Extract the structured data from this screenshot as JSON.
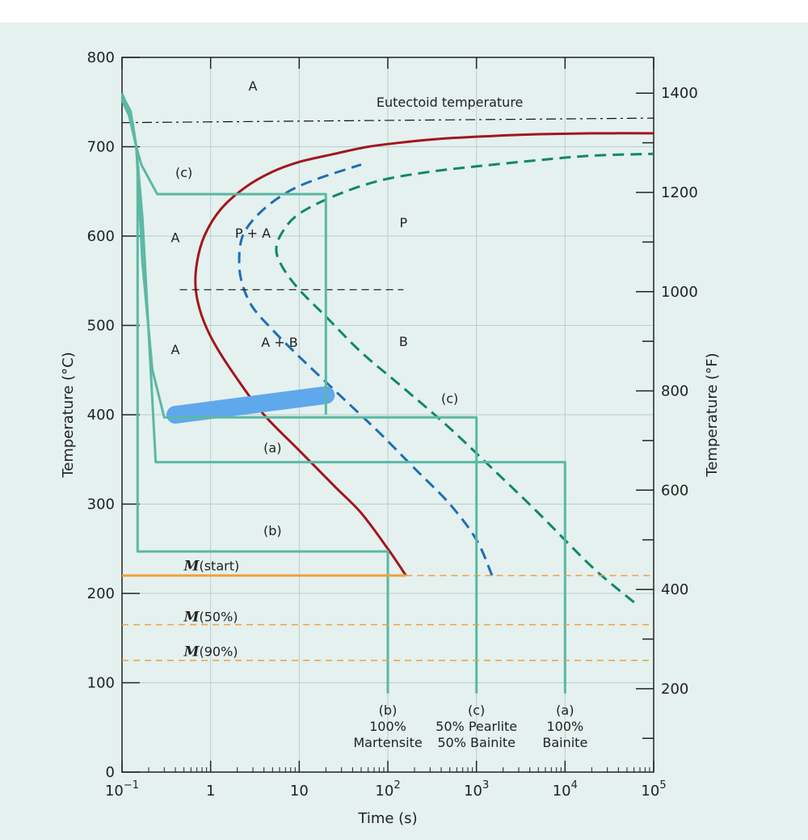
{
  "chart_data": {
    "type": "line",
    "xlabel": "Time (s)",
    "ylabel": "Temperature (°C)",
    "y2label": "Temperature (°F)",
    "x_scale": "log",
    "xlim": [
      0.1,
      100000
    ],
    "ylim": [
      0,
      800
    ],
    "y2lim_F": [
      32,
      1472
    ],
    "x_ticks": [
      {
        "v": 0.1,
        "base": "10",
        "exp": "−1"
      },
      {
        "v": 1,
        "base": "1",
        "exp": ""
      },
      {
        "v": 10,
        "base": "10",
        "exp": ""
      },
      {
        "v": 100,
        "base": "10",
        "exp": "2"
      },
      {
        "v": 1000,
        "base": "10",
        "exp": "3"
      },
      {
        "v": 10000,
        "base": "10",
        "exp": "4"
      },
      {
        "v": 100000,
        "base": "10",
        "exp": "5"
      }
    ],
    "y_ticks": [
      0,
      100,
      200,
      300,
      400,
      500,
      600,
      700,
      800
    ],
    "y2_ticks": [
      200,
      400,
      600,
      800,
      1000,
      1200,
      1400
    ],
    "grid": true,
    "colors": {
      "start_curve": "#a3161c",
      "half_curve": "#1d6fb6",
      "finish_curve": "#12866b",
      "path": "#5bb8a2",
      "m_line": "#f0a040",
      "highlight": "#5fa8ec",
      "text": "#222222",
      "background": "#e4f1ef"
    },
    "series": [
      {
        "type": "curve",
        "x": [
          160,
          100,
          50,
          25,
          10,
          4,
          2,
          1.1,
          0.8,
          0.68,
          0.7,
          0.85,
          1.3,
          2.5,
          5,
          10,
          25,
          60,
          150,
          400,
          1500,
          5000,
          20000,
          100000
        ],
        "y": [
          220,
          250,
          290,
          320,
          360,
          400,
          440,
          480,
          510,
          540,
          570,
          600,
          630,
          655,
          672,
          683,
          692,
          700,
          705,
          709,
          712,
          714,
          715,
          715
        ]
      },
      {
        "type": "curve",
        "x": [
          1500,
          1000,
          500,
          200,
          80,
          30,
          10,
          5,
          3,
          2.3,
          2.1,
          2.3,
          3.5,
          7,
          15,
          50
        ],
        "y": [
          220,
          260,
          300,
          340,
          380,
          420,
          465,
          495,
          520,
          545,
          570,
          600,
          625,
          648,
          663,
          680
        ]
      },
      {
        "type": "curve",
        "x": [
          60000,
          20000,
          5000,
          1500,
          500,
          150,
          50,
          20,
          10,
          6.5,
          5.5,
          6.5,
          10,
          25,
          80,
          300,
          1000,
          5000,
          20000,
          100000
        ],
        "y": [
          190,
          230,
          290,
          340,
          385,
          430,
          470,
          510,
          540,
          565,
          585,
          605,
          625,
          645,
          662,
          672,
          678,
          685,
          690,
          692
        ]
      },
      {
        "type": "curve",
        "x": [
          0.4,
          1,
          3,
          10,
          20
        ],
        "y": [
          398,
          403,
          409,
          416,
          420
        ]
      },
      {
        "type": "band",
        "x": [
          0.4,
          20
        ],
        "y": [
          400,
          422
        ]
      },
      {
        "type": "curve",
        "x": [
          0.1,
          100000
        ],
        "y": [
          727,
          732
        ]
      },
      {
        "type": "curve",
        "x": [
          0.45,
          150
        ],
        "y": [
          540,
          540
        ]
      },
      {
        "type": "path",
        "x": [
          0.1,
          0.12,
          0.145,
          0.15,
          0.15,
          100,
          100
        ],
        "y": [
          760,
          740,
          700,
          680,
          247,
          247,
          88
        ]
      },
      {
        "type": "path",
        "x": [
          0.1,
          0.13,
          0.145,
          0.17,
          0.24,
          10000,
          10000
        ],
        "y": [
          755,
          730,
          700,
          620,
          347,
          347,
          88
        ]
      },
      {
        "type": "path",
        "x": [
          0.1,
          0.12,
          0.145,
          0.17,
          0.22,
          0.3,
          1000,
          1000
        ],
        "y": [
          752,
          735,
          700,
          570,
          450,
          397,
          397,
          88
        ]
      },
      {
        "type": "path",
        "x": [
          0.1,
          0.125,
          0.145,
          0.165,
          0.25,
          20,
          20
        ],
        "y": [
          758,
          740,
          700,
          680,
          647,
          647,
          400
        ]
      },
      {
        "type": "mline",
        "y": 220,
        "solid_to": 160
      },
      {
        "type": "mline",
        "y": 165
      },
      {
        "type": "mline",
        "y": 125
      }
    ],
    "annotations": [
      {
        "text": "Eutectoid temperature",
        "x": 500,
        "y": 745
      },
      {
        "text": "A",
        "x": 3,
        "y": 763
      },
      {
        "text": "(c)",
        "x": 0.5,
        "y": 666
      },
      {
        "text": "A",
        "x": 0.4,
        "y": 593
      },
      {
        "text": "P + A",
        "x": 3,
        "y": 598
      },
      {
        "text": "P",
        "x": 150,
        "y": 610
      },
      {
        "text": "A",
        "x": 0.4,
        "y": 468
      },
      {
        "text": "A + B",
        "x": 6,
        "y": 476
      },
      {
        "text": "B",
        "x": 150,
        "y": 477
      },
      {
        "text": "(c)",
        "x": 500,
        "y": 413
      },
      {
        "text": "(a)",
        "x": 5,
        "y": 358
      },
      {
        "text": "(b)",
        "x": 5,
        "y": 265
      },
      {
        "text": "(start)",
        "m": "M",
        "x": 0.5,
        "y": 226
      },
      {
        "text": "(50%)",
        "m": "M",
        "x": 0.5,
        "y": 169
      },
      {
        "text": "(90%)",
        "m": "M",
        "x": 0.5,
        "y": 130
      }
    ],
    "end_labels": [
      {
        "x": 100,
        "lines": [
          "(b)",
          "100%",
          "Martensite"
        ]
      },
      {
        "x": 1000,
        "lines": [
          "(c)",
          "50% Pearlite",
          "50% Bainite"
        ]
      },
      {
        "x": 10000,
        "lines": [
          "(a)",
          "100%",
          "Bainite"
        ]
      }
    ]
  }
}
